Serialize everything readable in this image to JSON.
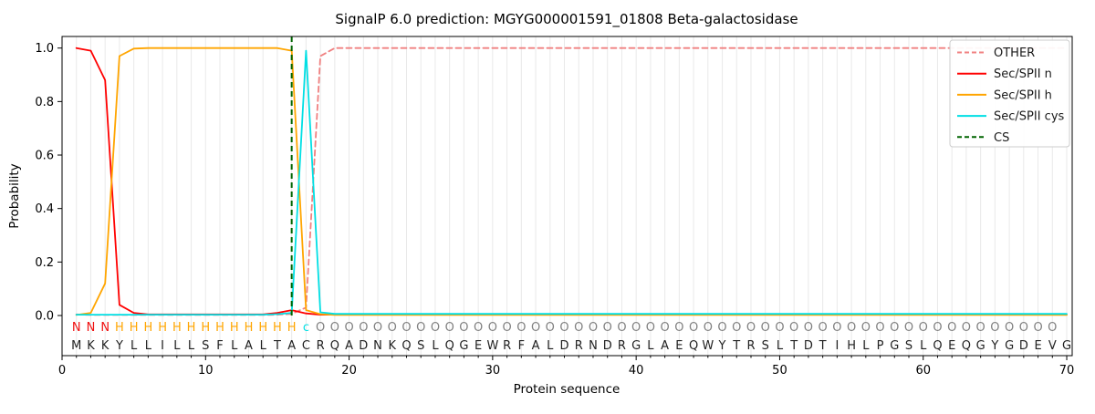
{
  "title": "SignalP 6.0 prediction: MGYG000001591_01808 Beta-galactosidase",
  "axes": {
    "xlabel": "Protein sequence",
    "ylabel": "Probability",
    "x_ticks": [
      0,
      10,
      20,
      30,
      40,
      50,
      60,
      70
    ],
    "y_ticks": [
      "0.0",
      "0.2",
      "0.4",
      "0.6",
      "0.8",
      "1.0"
    ]
  },
  "legend": {
    "entries": [
      {
        "label": "OTHER",
        "color": "#f08080",
        "dashed": true
      },
      {
        "label": "Sec/SPII n",
        "color": "#ff0000",
        "dashed": false
      },
      {
        "label": "Sec/SPII h",
        "color": "#ffa500",
        "dashed": false
      },
      {
        "label": "Sec/SPII cys",
        "color": "#00dfe4",
        "dashed": false
      },
      {
        "label": "CS",
        "color": "#006400",
        "dashed": true
      }
    ]
  },
  "sequence": {
    "residues": "MKKYLLILLSFLALTACRQADNKQSLQGEWRFALDRNDRGLAEQWYTRSLTDTIHLPGSLQEQGYGDEVG",
    "annotation": "NNNHHHHHHHHHHHHHcOOOOOOOOOOOOOOOOOOOOOOOOOOOOOOOOOOOOOOOOOOOOOOOOOOOO",
    "annotation_colors": {
      "N": "#f01010",
      "H": "#ffa500",
      "c": "#00dfe4",
      "O": "#808080"
    },
    "residue_color": "#1f1f1f"
  },
  "chart_data": {
    "type": "line",
    "title": "SignalP 6.0 prediction: MGYG000001591_01808 Beta-galactosidase",
    "xlabel": "Protein sequence",
    "ylabel": "Probability",
    "xlim": [
      0,
      70.4
    ],
    "ylim": [
      -0.15,
      1.045
    ],
    "x_positions": "residue index 1..70",
    "grid": "vertical gridline at every residue position",
    "legend_position": "upper right",
    "cs_vline": {
      "name": "CS",
      "x": 16,
      "color": "#006400",
      "dashed": true
    },
    "series": [
      {
        "name": "OTHER",
        "color": "#f08080",
        "dashed": true,
        "values": [
          0.004,
          0.002,
          0.002,
          0.002,
          0.002,
          0.002,
          0.002,
          0.002,
          0.002,
          0.002,
          0.002,
          0.002,
          0.002,
          0.002,
          0.003,
          0.006,
          0.03,
          0.97,
          1.0,
          1.0,
          1.0,
          1.0,
          1.0,
          1.0,
          1.0,
          1.0,
          1.0,
          1.0,
          1.0,
          1.0,
          1.0,
          1.0,
          1.0,
          1.0,
          1.0,
          1.0,
          1.0,
          1.0,
          1.0,
          1.0,
          1.0,
          1.0,
          1.0,
          1.0,
          1.0,
          1.0,
          1.0,
          1.0,
          1.0,
          1.0,
          1.0,
          1.0,
          1.0,
          1.0,
          1.0,
          1.0,
          1.0,
          1.0,
          1.0,
          1.0,
          1.0,
          1.0,
          1.0,
          1.0,
          1.0,
          1.0,
          1.0,
          1.0,
          1.0,
          1.0
        ]
      },
      {
        "name": "Sec/SPII n",
        "color": "#ff0000",
        "dashed": false,
        "values": [
          1.0,
          0.99,
          0.88,
          0.04,
          0.01,
          0.004,
          0.004,
          0.004,
          0.004,
          0.004,
          0.004,
          0.004,
          0.004,
          0.004,
          0.01,
          0.02,
          0.008,
          0.003,
          0.003,
          0.003,
          0.003,
          0.003,
          0.003,
          0.003,
          0.003,
          0.003,
          0.003,
          0.003,
          0.003,
          0.003,
          0.003,
          0.003,
          0.003,
          0.003,
          0.003,
          0.003,
          0.003,
          0.003,
          0.003,
          0.003,
          0.003,
          0.003,
          0.003,
          0.003,
          0.003,
          0.003,
          0.003,
          0.003,
          0.003,
          0.003,
          0.003,
          0.003,
          0.003,
          0.003,
          0.003,
          0.003,
          0.003,
          0.003,
          0.003,
          0.003,
          0.003,
          0.003,
          0.003,
          0.003,
          0.003,
          0.003,
          0.003,
          0.003,
          0.003,
          0.003
        ]
      },
      {
        "name": "Sec/SPII h",
        "color": "#ffa500",
        "dashed": false,
        "values": [
          0.002,
          0.01,
          0.12,
          0.97,
          0.998,
          1.0,
          1.0,
          1.0,
          1.0,
          1.0,
          1.0,
          1.0,
          1.0,
          1.0,
          1.0,
          0.99,
          0.02,
          0.005,
          0.002,
          0.002,
          0.002,
          0.002,
          0.002,
          0.002,
          0.002,
          0.002,
          0.002,
          0.002,
          0.002,
          0.002,
          0.002,
          0.002,
          0.002,
          0.002,
          0.002,
          0.002,
          0.002,
          0.002,
          0.002,
          0.002,
          0.002,
          0.002,
          0.002,
          0.002,
          0.002,
          0.002,
          0.002,
          0.002,
          0.002,
          0.002,
          0.002,
          0.002,
          0.002,
          0.002,
          0.002,
          0.002,
          0.002,
          0.002,
          0.002,
          0.002,
          0.002,
          0.002,
          0.002,
          0.002,
          0.002,
          0.002,
          0.002,
          0.002,
          0.002,
          0.002
        ]
      },
      {
        "name": "Sec/SPII cys",
        "color": "#00dfe4",
        "dashed": false,
        "values": [
          0.003,
          0.003,
          0.003,
          0.003,
          0.003,
          0.003,
          0.003,
          0.003,
          0.003,
          0.003,
          0.003,
          0.003,
          0.003,
          0.003,
          0.005,
          0.01,
          0.99,
          0.012,
          0.006,
          0.006,
          0.006,
          0.006,
          0.006,
          0.006,
          0.006,
          0.006,
          0.006,
          0.006,
          0.006,
          0.006,
          0.006,
          0.006,
          0.006,
          0.006,
          0.006,
          0.006,
          0.006,
          0.006,
          0.006,
          0.006,
          0.006,
          0.006,
          0.006,
          0.006,
          0.006,
          0.006,
          0.006,
          0.006,
          0.006,
          0.006,
          0.006,
          0.006,
          0.006,
          0.006,
          0.006,
          0.006,
          0.006,
          0.006,
          0.006,
          0.006,
          0.006,
          0.006,
          0.006,
          0.006,
          0.006,
          0.006,
          0.006,
          0.006,
          0.006,
          0.006
        ]
      }
    ]
  }
}
